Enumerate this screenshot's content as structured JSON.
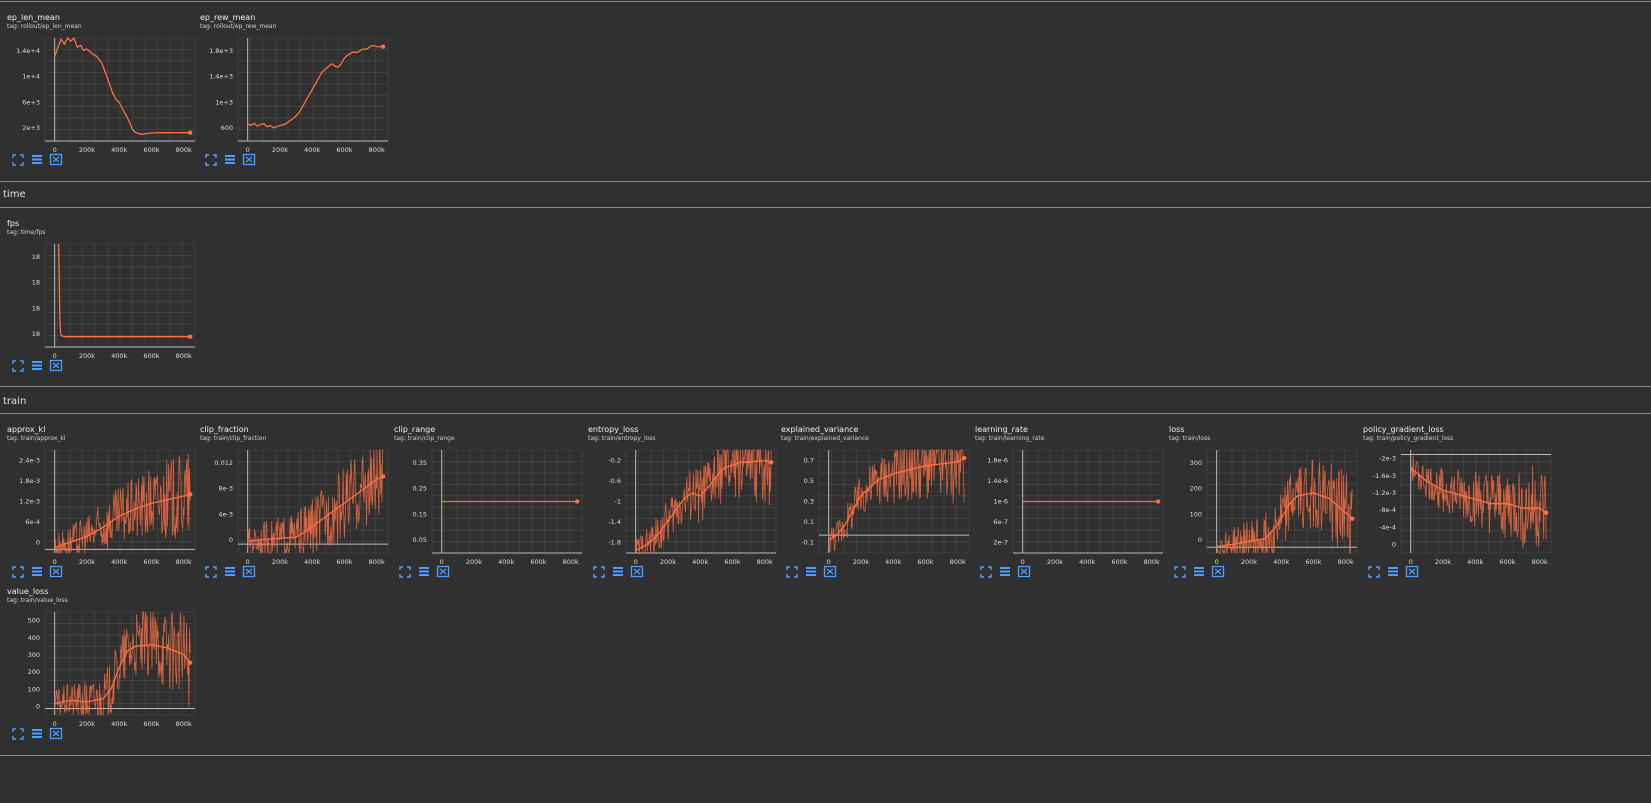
{
  "sections": {
    "time": "time",
    "train": "train"
  },
  "colors": {
    "line": "#ff7043",
    "grid": "#4a4a4a",
    "axis": "#bdbdbd",
    "tool": "#4f9fff"
  },
  "tools": {
    "expand": "expand-icon",
    "data": "data-table-icon",
    "fit": "fit-domain-icon"
  },
  "chart_data": [
    {
      "id": "ep_len_mean",
      "type": "line",
      "title": "ep_len_mean",
      "tag": "tag: rollout/ep_len_mean",
      "xticks": [
        "0",
        "200k",
        "400k",
        "600k",
        "800k"
      ],
      "xlim": [
        -60000,
        870000
      ],
      "yticks": [
        "2e+3",
        "6e+3",
        "1e+4",
        "1.4e+4"
      ],
      "ylim": [
        200,
        17000
      ],
      "x": [
        0,
        20000,
        40000,
        60000,
        80000,
        100000,
        120000,
        140000,
        160000,
        180000,
        200000,
        230000,
        260000,
        290000,
        320000,
        340000,
        360000,
        380000,
        400000,
        420000,
        440000,
        460000,
        480000,
        500000,
        520000,
        540000,
        560000,
        600000,
        650000,
        700000,
        750000,
        800000,
        840000
      ],
      "y": [
        14000,
        15500,
        16800,
        16000,
        17000,
        16500,
        17200,
        15500,
        15800,
        15000,
        15200,
        14500,
        14000,
        13000,
        11000,
        9500,
        8000,
        7000,
        6500,
        5500,
        4500,
        3500,
        2200,
        1600,
        1400,
        1300,
        1350,
        1500,
        1550,
        1550,
        1550,
        1550,
        1550
      ]
    },
    {
      "id": "ep_rew_mean",
      "type": "line",
      "title": "ep_rew_mean",
      "tag": "tag: rollout/ep_rew_mean",
      "xticks": [
        "0",
        "200k",
        "400k",
        "600k",
        "800k"
      ],
      "xlim": [
        -60000,
        870000
      ],
      "yticks": [
        "600",
        "1e+3",
        "1.4e+3",
        "1.8e+3"
      ],
      "ylim": [
        350,
        2150
      ],
      "x": [
        0,
        20000,
        40000,
        60000,
        80000,
        100000,
        120000,
        140000,
        160000,
        180000,
        200000,
        230000,
        260000,
        290000,
        320000,
        340000,
        360000,
        380000,
        400000,
        420000,
        440000,
        460000,
        480000,
        500000,
        520000,
        540000,
        560000,
        580000,
        600000,
        620000,
        650000,
        680000,
        710000,
        740000,
        770000,
        800000,
        840000
      ],
      "y": [
        650,
        620,
        660,
        610,
        640,
        650,
        600,
        620,
        580,
        600,
        620,
        640,
        700,
        760,
        850,
        950,
        1050,
        1150,
        1250,
        1350,
        1450,
        1550,
        1600,
        1650,
        1700,
        1660,
        1640,
        1700,
        1800,
        1850,
        1900,
        1900,
        1950,
        1960,
        2020,
        2000,
        2000
      ]
    },
    {
      "id": "fps",
      "type": "line",
      "title": "fps",
      "tag": "tag: time/fps",
      "xticks": [
        "0",
        "200k",
        "400k",
        "600k",
        "800k"
      ],
      "xlim": [
        -60000,
        870000
      ],
      "yticks": [
        "18",
        "18",
        "18",
        "18"
      ],
      "ylim": [
        0,
        100
      ],
      "x": [
        25000,
        28000,
        32000,
        36000,
        42000,
        60000,
        200000,
        400000,
        600000,
        840000
      ],
      "y": [
        100,
        70,
        30,
        14,
        11,
        10,
        10,
        10,
        10,
        10
      ]
    },
    {
      "id": "approx_kl",
      "type": "line",
      "noisy": true,
      "title": "approx_kl",
      "tag": "tag: train/approx_kl",
      "xticks": [
        "0",
        "200k",
        "400k",
        "600k",
        "800k"
      ],
      "xlim": [
        -60000,
        870000
      ],
      "yticks": [
        "0",
        "6e-4",
        "1.2e-3",
        "1.8e-3",
        "2.4e-3"
      ],
      "ylim": [
        -100,
        2700
      ],
      "x": [
        0,
        100000,
        200000,
        300000,
        400000,
        500000,
        600000,
        700000,
        800000,
        840000
      ],
      "y": [
        50,
        200,
        350,
        600,
        900,
        1100,
        1250,
        1350,
        1450,
        1500
      ]
    },
    {
      "id": "clip_fraction",
      "type": "line",
      "noisy": true,
      "title": "clip_fraction",
      "tag": "tag: train/clip_fraction",
      "xticks": [
        "0",
        "200k",
        "400k",
        "600k",
        "800k"
      ],
      "xlim": [
        -60000,
        870000
      ],
      "yticks": [
        "0",
        "4e-3",
        "8e-3",
        "0.012"
      ],
      "ylim": [
        -0.0015,
        0.016
      ],
      "x": [
        0,
        100000,
        200000,
        300000,
        350000,
        400000,
        500000,
        600000,
        700000,
        800000,
        840000
      ],
      "y": [
        0.0005,
        0.0008,
        0.001,
        0.0012,
        0.002,
        0.003,
        0.005,
        0.007,
        0.009,
        0.011,
        0.0115
      ]
    },
    {
      "id": "clip_range",
      "type": "line",
      "title": "clip_range",
      "tag": "tag: train/clip_range",
      "xticks": [
        "0",
        "200k",
        "400k",
        "600k",
        "800k"
      ],
      "xlim": [
        -60000,
        870000
      ],
      "yticks": [
        "0.05",
        "0.15",
        "0.25",
        "0.35"
      ],
      "ylim": [
        0.02,
        0.38
      ],
      "x": [
        0,
        840000
      ],
      "y": [
        0.2,
        0.2
      ]
    },
    {
      "id": "entropy_loss",
      "type": "line",
      "noisy": true,
      "title": "entropy_loss",
      "tag": "tag: train/entropy_loss",
      "xticks": [
        "0",
        "200k",
        "400k",
        "600k",
        "800k"
      ],
      "xlim": [
        -60000,
        870000
      ],
      "yticks": [
        "-1.8",
        "-1.4",
        "-1",
        "-0.6",
        "-0.2"
      ],
      "ylim": [
        -1.92,
        -0.08
      ],
      "x": [
        0,
        50000,
        100000,
        150000,
        200000,
        250000,
        300000,
        350000,
        400000,
        450000,
        500000,
        550000,
        600000,
        650000,
        700000,
        750000,
        800000,
        840000
      ],
      "y": [
        -1.88,
        -1.8,
        -1.7,
        -1.55,
        -1.35,
        -1.15,
        -0.95,
        -0.85,
        -0.9,
        -0.75,
        -0.55,
        -0.4,
        -0.35,
        -0.3,
        -0.3,
        -0.28,
        -0.27,
        -0.3
      ]
    },
    {
      "id": "explained_variance",
      "type": "line",
      "noisy": true,
      "title": "explained_variance",
      "tag": "tag: train/explained_variance",
      "xticks": [
        "0",
        "200k",
        "400k",
        "600k",
        "800k"
      ],
      "xlim": [
        -60000,
        870000
      ],
      "yticks": [
        "-0.1",
        "0.1",
        "0.3",
        "0.5",
        "0.7"
      ],
      "ylim": [
        -0.18,
        0.86
      ],
      "x": [
        0,
        50000,
        100000,
        150000,
        200000,
        300000,
        400000,
        500000,
        600000,
        700000,
        800000,
        840000
      ],
      "y": [
        -0.05,
        0.0,
        0.1,
        0.25,
        0.4,
        0.55,
        0.62,
        0.66,
        0.7,
        0.72,
        0.74,
        0.78
      ]
    },
    {
      "id": "learning_rate",
      "type": "line",
      "title": "learning_rate",
      "tag": "tag: train/learning_rate",
      "xticks": [
        "0",
        "200k",
        "400k",
        "600k",
        "800k"
      ],
      "xlim": [
        -60000,
        870000
      ],
      "yticks": [
        "2e-7",
        "6e-7",
        "1e-6",
        "1.4e-6",
        "1.8e-6"
      ],
      "ylim": [
        1e-07,
        1.9e-06
      ],
      "x": [
        0,
        840000
      ],
      "y": [
        1e-06,
        1e-06
      ]
    },
    {
      "id": "loss",
      "type": "line",
      "noisy": true,
      "title": "loss",
      "tag": "tag: train/loss",
      "xticks": [
        "0",
        "200k",
        "400k",
        "600k",
        "800k"
      ],
      "xlim": [
        -60000,
        870000
      ],
      "yticks": [
        "0",
        "100",
        "200",
        "300"
      ],
      "ylim": [
        -20,
        340
      ],
      "x": [
        0,
        100000,
        200000,
        300000,
        350000,
        400000,
        450000,
        500000,
        600000,
        700000,
        800000,
        840000
      ],
      "y": [
        2,
        10,
        20,
        30,
        60,
        100,
        150,
        180,
        190,
        170,
        120,
        100
      ]
    },
    {
      "id": "policy_gradient_loss",
      "type": "line",
      "noisy": true,
      "title": "policy_gradient_loss",
      "tag": "tag: train/policy_gradient_loss",
      "xticks": [
        "0",
        "200k",
        "400k",
        "600k",
        "800k"
      ],
      "xlim": [
        -60000,
        870000
      ],
      "yticks": [
        "0",
        "-4e-4",
        "-8e-4",
        "-1.2e-3",
        "-1.6e-3",
        "-2e-3"
      ],
      "ylim": [
        -0.0022,
        0.0001
      ],
      "x": [
        0,
        100000,
        200000,
        300000,
        400000,
        500000,
        600000,
        700000,
        800000,
        840000
      ],
      "y": [
        -0.0003,
        -0.0006,
        -0.0008,
        -0.0009,
        -0.001,
        -0.0011,
        -0.0011,
        -0.0012,
        -0.0012,
        -0.0013
      ]
    },
    {
      "id": "value_loss",
      "type": "line",
      "noisy": true,
      "title": "value_loss",
      "tag": "tag: train/value_loss",
      "xticks": [
        "0",
        "200k",
        "400k",
        "600k",
        "800k"
      ],
      "xlim": [
        -60000,
        870000
      ],
      "yticks": [
        "0",
        "100",
        "200",
        "300",
        "400",
        "500"
      ],
      "ylim": [
        -40,
        590
      ],
      "x": [
        0,
        100000,
        200000,
        300000,
        350000,
        400000,
        450000,
        500000,
        600000,
        700000,
        800000,
        840000
      ],
      "y": [
        30,
        50,
        40,
        60,
        120,
        250,
        350,
        380,
        390,
        370,
        330,
        280
      ]
    }
  ]
}
